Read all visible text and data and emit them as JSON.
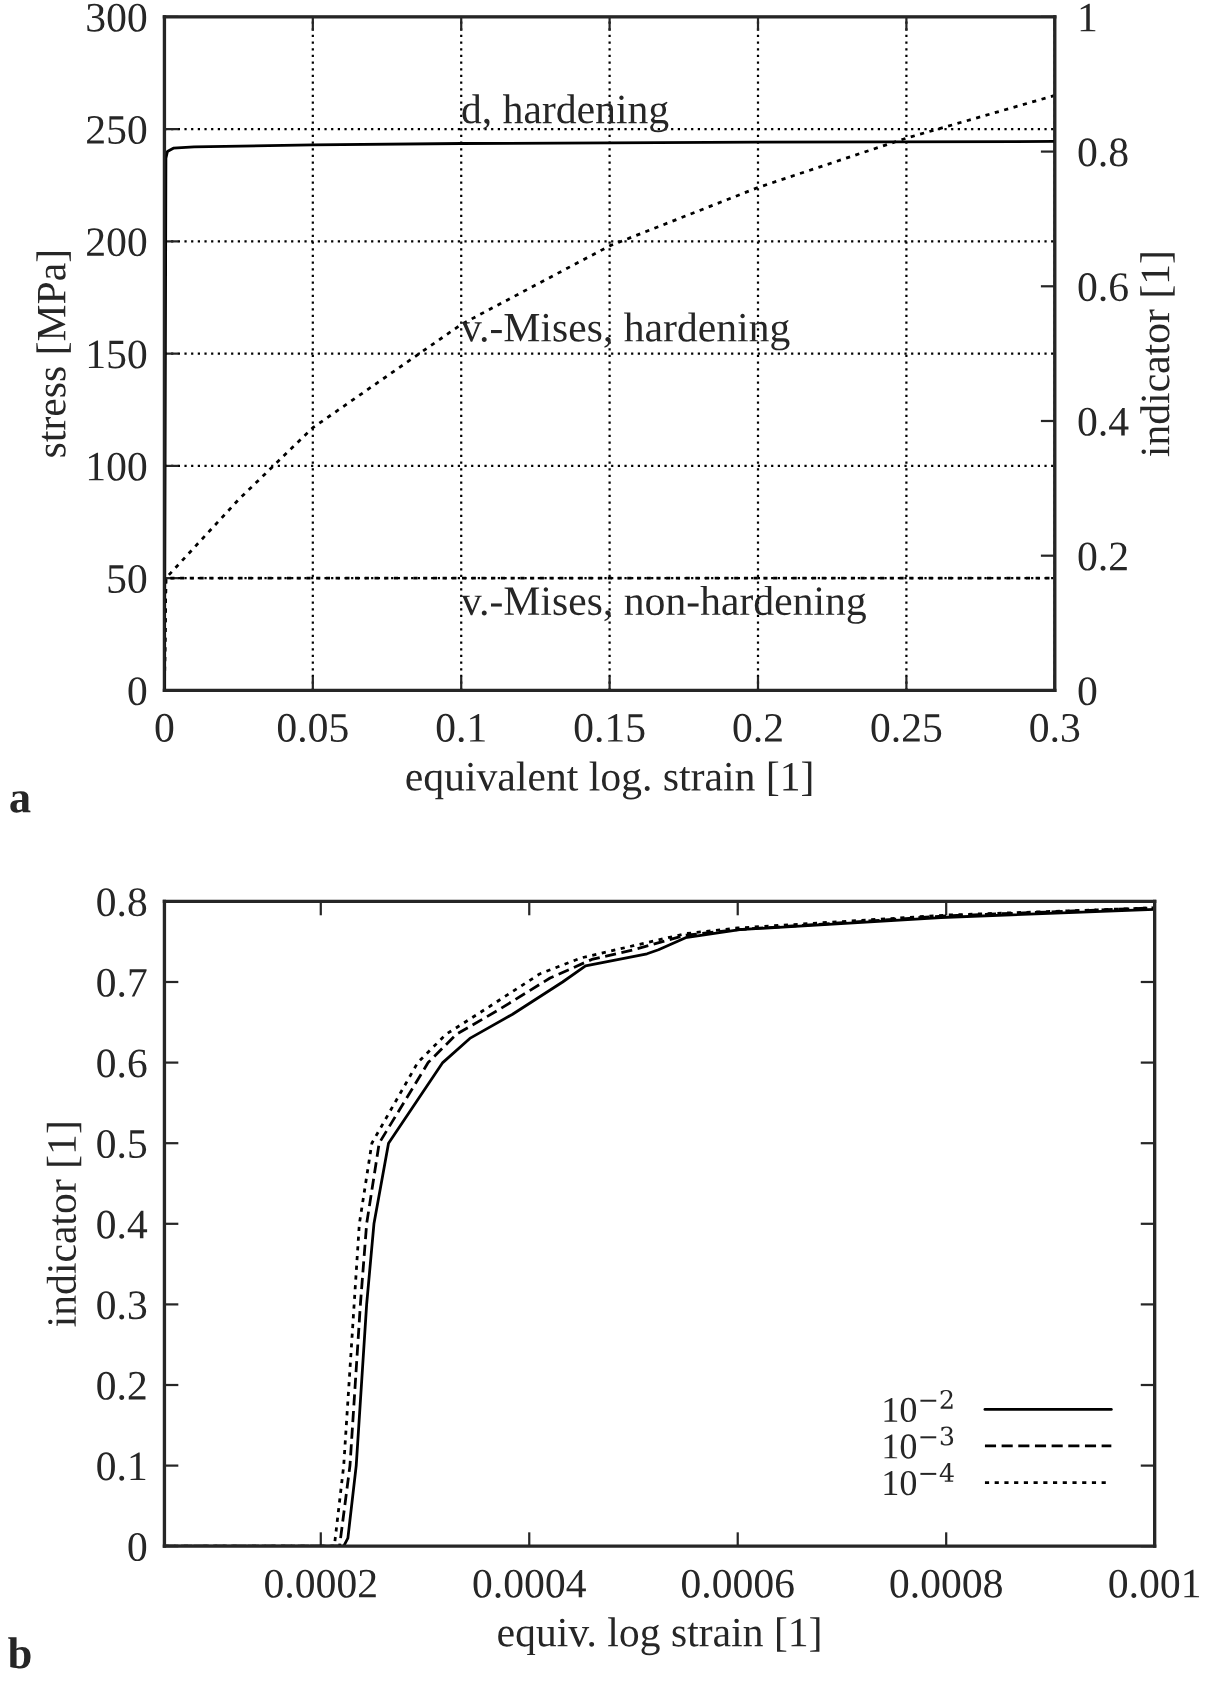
{
  "chart_data": [
    {
      "type": "line",
      "xlabel": "equivalent log. strain [1]",
      "ylabel": "stress [MPa]",
      "y2label": "indicator [1]",
      "xlim": [
        0,
        0.3
      ],
      "xticks": [
        0,
        0.05,
        0.1,
        0.15,
        0.2,
        0.25,
        0.3
      ],
      "ylim": [
        0,
        300
      ],
      "yticks": [
        0,
        50,
        100,
        150,
        200,
        250,
        300
      ],
      "y2lim": [
        0,
        1
      ],
      "y2ticks": [
        0,
        0.2,
        0.4,
        0.6,
        0.8,
        1
      ],
      "grid": true,
      "legend": false,
      "series": [
        {
          "color": "#000000",
          "line_style": "solid",
          "axis": "y2",
          "x": [
            0,
            0.0005,
            0.001,
            0.003,
            0.01,
            0.05,
            0.1,
            0.2,
            0.3
          ],
          "values": [
            0,
            0.79,
            0.8,
            0.805,
            0.807,
            0.81,
            0.812,
            0.814,
            0.815
          ]
        },
        {
          "color": "#000000",
          "line_style": "dotted",
          "x": [
            0,
            0.0005,
            0.025,
            0.05,
            0.075,
            0.1,
            0.15,
            0.2,
            0.25,
            0.3
          ],
          "values": [
            0,
            50,
            85,
            117,
            140,
            163,
            198,
            224,
            246,
            265
          ]
        },
        {
          "color": "#000000",
          "line_style": "dotted",
          "x": [
            0,
            0.0005,
            0.3
          ],
          "values": [
            0,
            50,
            50
          ]
        }
      ],
      "annotations": [
        "d, hardening",
        "v.-Mises, hardening",
        "v.-Mises, non-hardening",
        "a"
      ]
    },
    {
      "type": "line",
      "xlabel": "equiv. log strain [1]",
      "ylabel": "indicator [1]",
      "xlim": [
        5e-05,
        0.001
      ],
      "xticks": [
        0.0002,
        0.0004,
        0.0006,
        0.0008,
        0.001
      ],
      "ylim": [
        0,
        0.8
      ],
      "yticks": [
        0,
        0.1,
        0.2,
        0.3,
        0.4,
        0.5,
        0.6,
        0.7,
        0.8
      ],
      "grid": false,
      "legend": "bottom right",
      "series": [
        {
          "name": "10$^{−2}$",
          "color": "#000000",
          "line_style": "solid",
          "x": [
            5e-05,
            0.000222,
            0.000226,
            0.000234,
            0.000239,
            0.000244,
            0.000251,
            0.000265,
            0.000317,
            0.000343,
            0.000384,
            0.000432,
            0.000454,
            0.000513,
            0.000524,
            0.00055,
            0.000602,
            0.000795,
            0.001
          ],
          "values": [
            0,
            0,
            0.01,
            0.1,
            0.2,
            0.3,
            0.4,
            0.5,
            0.6,
            0.63,
            0.66,
            0.7,
            0.72,
            0.735,
            0.74,
            0.755,
            0.765,
            0.78,
            0.79
          ]
        },
        {
          "name": "10$^{−3}$",
          "color": "#000000",
          "line_style": "dashed",
          "x": [
            5e-05,
            0.000218,
            0.000228,
            0.000233,
            0.000238,
            0.000244,
            0.000256,
            0.000303,
            0.00033,
            0.00037,
            0.00042,
            0.00046,
            0.0005,
            0.00055,
            0.0006,
            0.0008,
            0.001
          ],
          "values": [
            0,
            0,
            0.1,
            0.2,
            0.3,
            0.4,
            0.5,
            0.6,
            0.635,
            0.665,
            0.705,
            0.728,
            0.74,
            0.758,
            0.765,
            0.782,
            0.792
          ]
        },
        {
          "name": "10$^{−4}$",
          "color": "#000000",
          "line_style": "dotted",
          "x": [
            5e-05,
            0.000213,
            0.000222,
            0.000227,
            0.000232,
            0.000237,
            0.000249,
            0.000293,
            0.00032,
            0.00036,
            0.00041,
            0.00045,
            0.0005,
            0.00055,
            0.0006,
            0.0008,
            0.001
          ],
          "values": [
            0,
            0,
            0.1,
            0.2,
            0.3,
            0.4,
            0.5,
            0.6,
            0.635,
            0.668,
            0.71,
            0.73,
            0.745,
            0.76,
            0.767,
            0.783,
            0.792
          ]
        }
      ],
      "annotations": [
        "b"
      ]
    }
  ]
}
